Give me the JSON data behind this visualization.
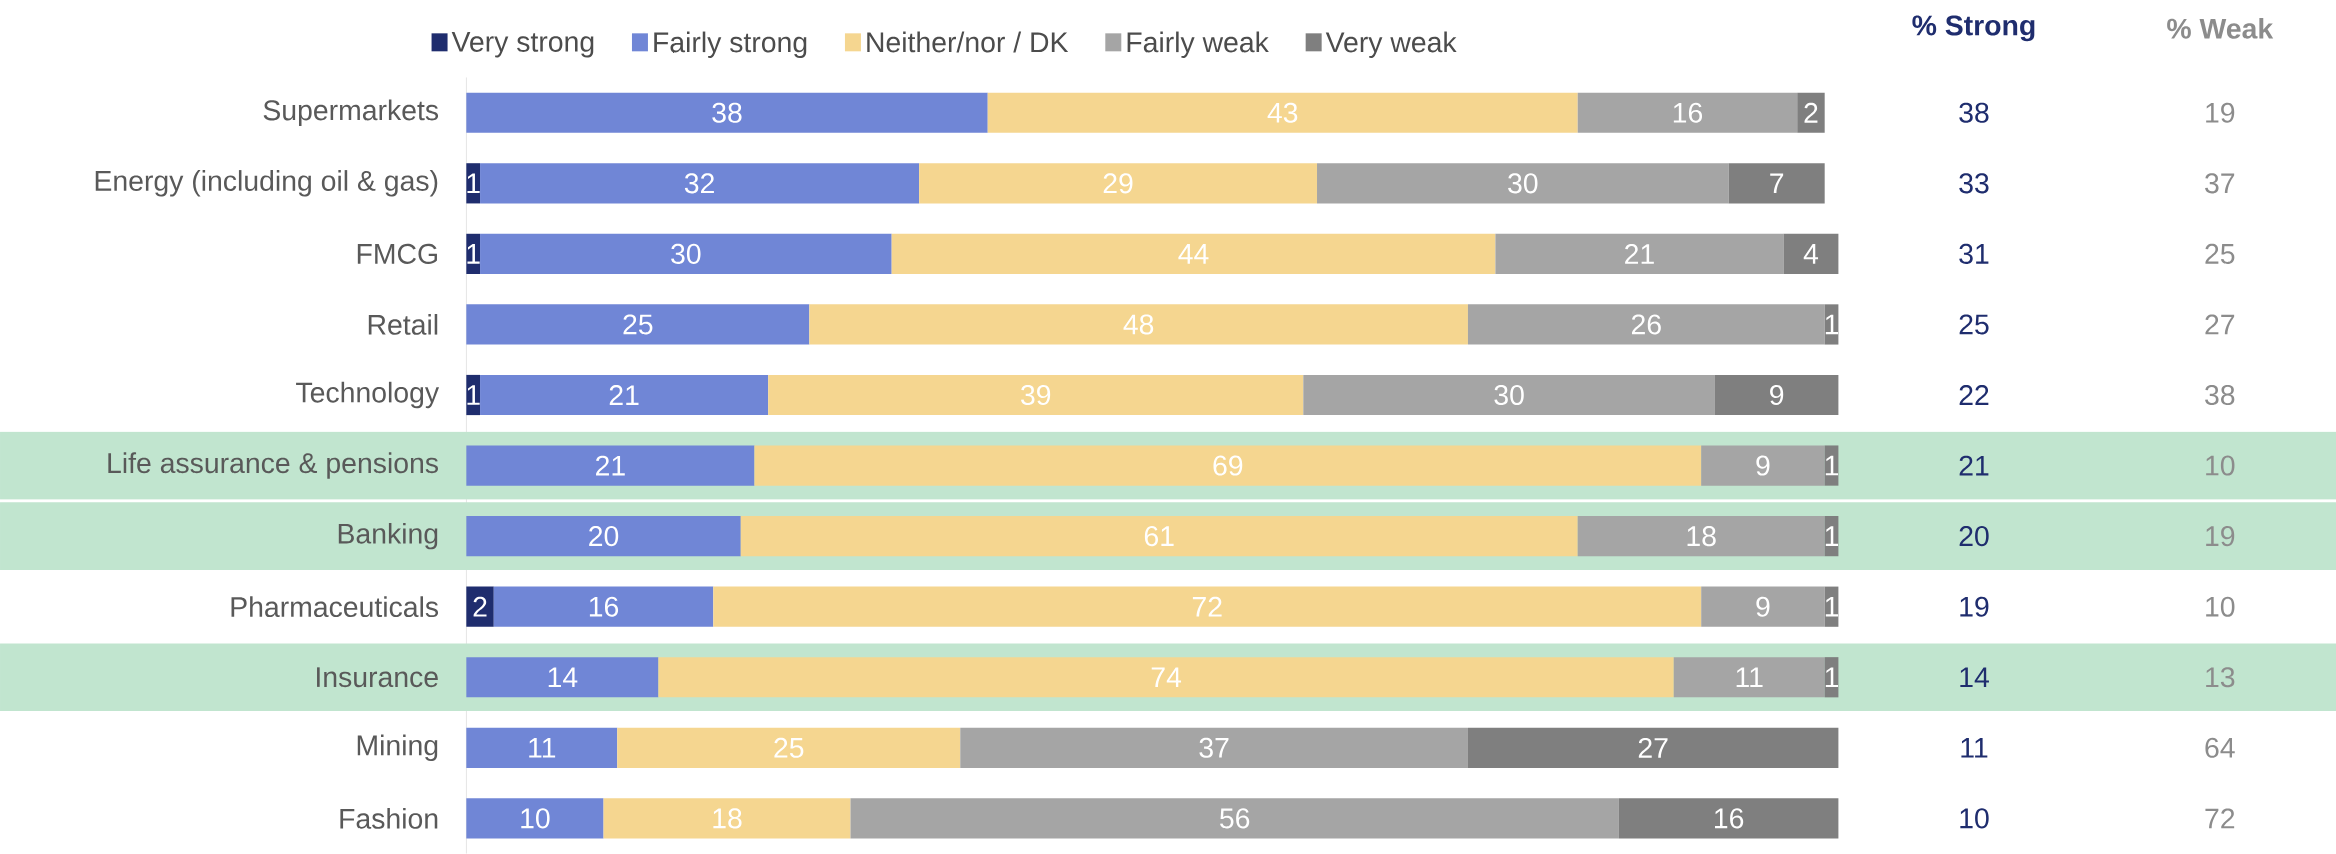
{
  "chart_data": {
    "type": "bar",
    "orientation": "horizontal",
    "stacked": true,
    "data_labels": true,
    "legend": "top",
    "tick_labels": "y",
    "xlim": [
      0,
      100
    ],
    "categories": [
      "Supermarkets",
      "Energy (including oil & gas)",
      "FMCG",
      "Retail",
      "Technology",
      "Life assurance & pensions",
      "Banking",
      "Pharmaceuticals",
      "Insurance",
      "Mining",
      "Fashion"
    ],
    "series": [
      {
        "name": "Very strong",
        "color": "#1f2d6e",
        "values": [
          null,
          1,
          1,
          null,
          1,
          null,
          null,
          2,
          null,
          null,
          null
        ]
      },
      {
        "name": "Fairly strong",
        "color": "#7086d6",
        "values": [
          38,
          32,
          30,
          25,
          21,
          21,
          20,
          16,
          14,
          11,
          10
        ]
      },
      {
        "name": "Neither/nor / DK",
        "color": "#f5d690",
        "values": [
          43,
          29,
          44,
          48,
          39,
          69,
          61,
          72,
          74,
          25,
          18
        ]
      },
      {
        "name": "Fairly weak",
        "color": "#a5a5a5",
        "values": [
          16,
          30,
          21,
          26,
          30,
          9,
          18,
          9,
          11,
          37,
          56
        ]
      },
      {
        "name": "Very weak",
        "color": "#7f7f7f",
        "values": [
          2,
          7,
          4,
          1,
          9,
          1,
          1,
          1,
          1,
          27,
          16
        ]
      }
    ],
    "bands": [
      {
        "axis": "y",
        "from": "Life assurance & pensions",
        "to": "Life assurance & pensions",
        "color": "#c1e5cf"
      },
      {
        "axis": "y",
        "from": "Banking",
        "to": "Banking",
        "color": "#c1e5cf"
      },
      {
        "axis": "y",
        "from": "Insurance",
        "to": "Insurance",
        "color": "#c1e5cf"
      }
    ],
    "annotations": [
      "% Strong",
      "38",
      "33",
      "31",
      "25",
      "22",
      "21",
      "20",
      "19",
      "14",
      "11",
      "10",
      "% Weak",
      "19",
      "37",
      "25",
      "27",
      "38",
      "10",
      "19",
      "10",
      "13",
      "64",
      "72"
    ]
  }
}
